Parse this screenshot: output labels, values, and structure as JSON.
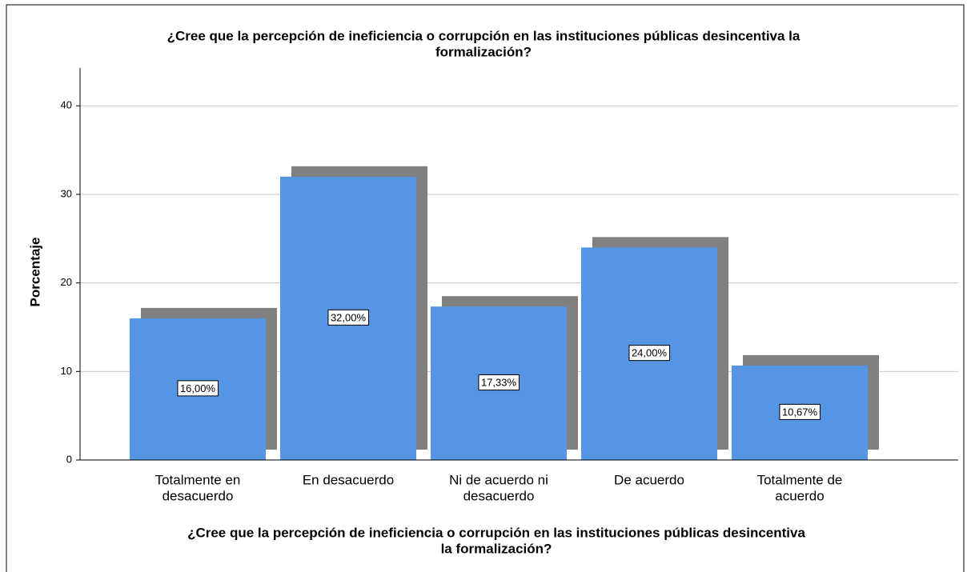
{
  "chart_data": {
    "type": "bar",
    "title": [
      "¿Cree que la percepción de ineficiencia o corrupción en las instituciones públicas desincentiva la",
      "formalización?"
    ],
    "x_label": [
      "¿Cree que la percepción de ineficiencia o corrupción en las instituciones públicas desincentiva",
      "la formalización?"
    ],
    "y_label": "Porcentaje",
    "categories": [
      [
        "Totalmente en",
        "desacuerdo"
      ],
      [
        "En desacuerdo"
      ],
      [
        "Ni de acuerdo ni",
        "desacuerdo"
      ],
      [
        "De acuerdo"
      ],
      [
        "Totalmente de",
        "acuerdo"
      ]
    ],
    "values": [
      16,
      32,
      17.33,
      24,
      10.67
    ],
    "value_labels": [
      "16,00%",
      "32,00%",
      "17,33%",
      "24,00%",
      "10,67%"
    ],
    "color": "#5595e3",
    "shadow_color": "#808080",
    "ylim": [
      0,
      44
    ],
    "yticks": [
      0,
      10,
      20,
      30,
      40
    ],
    "grid": true
  }
}
